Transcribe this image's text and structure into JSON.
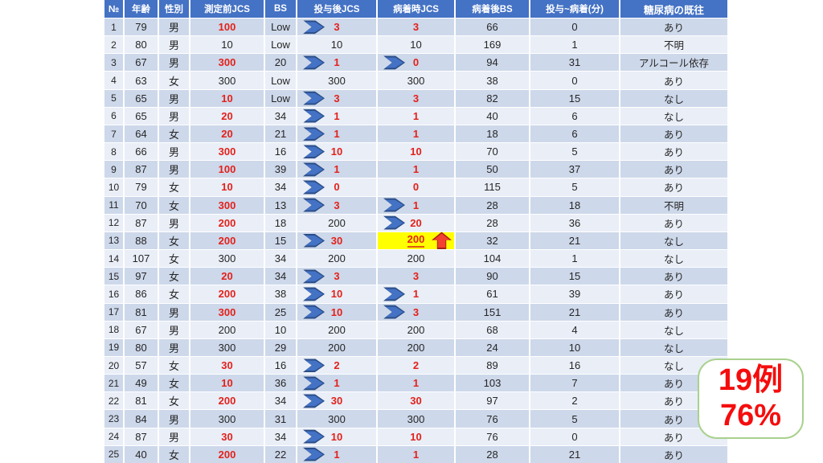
{
  "table": {
    "columns": [
      "№",
      "年齢",
      "性別",
      "測定前JCS",
      "BS",
      "投与後JCS",
      "病着時JCS",
      "病着後BS",
      "投与~病着(分)",
      "糖尿病の既往"
    ],
    "column_keys": [
      "no",
      "age",
      "sex",
      "pre-jcs",
      "bs",
      "post-jcs",
      "arrival-jcs",
      "arrival-bs",
      "minutes",
      "diabetes"
    ],
    "style_legend": {
      "": "black plain",
      "r": "red bold",
      "ar": "blue chevron arrow + red bold",
      "hl": "yellow highlight + red underlined + red up arrow"
    },
    "rows": [
      {
        "no": "1",
        "age": "79",
        "sex": "男",
        "pre": "100",
        "preRed": 1,
        "bs": "Low",
        "post": "3",
        "postStyle": "ar",
        "arr": "3",
        "arrStyle": "r",
        "arrBS": "66",
        "min": "0",
        "dm": "あり"
      },
      {
        "no": "2",
        "age": "80",
        "sex": "男",
        "pre": "10",
        "preRed": 0,
        "bs": "Low",
        "post": "10",
        "postStyle": "",
        "arr": "10",
        "arrStyle": "",
        "arrBS": "169",
        "min": "1",
        "dm": "不明"
      },
      {
        "no": "3",
        "age": "67",
        "sex": "男",
        "pre": "300",
        "preRed": 1,
        "bs": "20",
        "post": "1",
        "postStyle": "ar",
        "arr": "0",
        "arrStyle": "ar",
        "arrBS": "94",
        "min": "31",
        "dm": "アルコール依存"
      },
      {
        "no": "4",
        "age": "63",
        "sex": "女",
        "pre": "300",
        "preRed": 0,
        "bs": "Low",
        "post": "300",
        "postStyle": "",
        "arr": "300",
        "arrStyle": "",
        "arrBS": "38",
        "min": "0",
        "dm": "あり"
      },
      {
        "no": "5",
        "age": "65",
        "sex": "男",
        "pre": "10",
        "preRed": 1,
        "bs": "Low",
        "post": "3",
        "postStyle": "ar",
        "arr": "3",
        "arrStyle": "r",
        "arrBS": "82",
        "min": "15",
        "dm": "なし"
      },
      {
        "no": "6",
        "age": "65",
        "sex": "男",
        "pre": "20",
        "preRed": 1,
        "bs": "34",
        "post": "1",
        "postStyle": "ar",
        "arr": "1",
        "arrStyle": "r",
        "arrBS": "40",
        "min": "6",
        "dm": "なし"
      },
      {
        "no": "7",
        "age": "64",
        "sex": "女",
        "pre": "20",
        "preRed": 1,
        "bs": "21",
        "post": "1",
        "postStyle": "ar",
        "arr": "1",
        "arrStyle": "r",
        "arrBS": "18",
        "min": "6",
        "dm": "あり"
      },
      {
        "no": "8",
        "age": "66",
        "sex": "男",
        "pre": "300",
        "preRed": 1,
        "bs": "16",
        "post": "10",
        "postStyle": "ar",
        "arr": "10",
        "arrStyle": "r",
        "arrBS": "70",
        "min": "5",
        "dm": "あり"
      },
      {
        "no": "9",
        "age": "87",
        "sex": "男",
        "pre": "100",
        "preRed": 1,
        "bs": "39",
        "post": "1",
        "postStyle": "ar",
        "arr": "1",
        "arrStyle": "r",
        "arrBS": "50",
        "min": "37",
        "dm": "あり"
      },
      {
        "no": "10",
        "age": "79",
        "sex": "女",
        "pre": "10",
        "preRed": 1,
        "bs": "34",
        "post": "0",
        "postStyle": "ar",
        "arr": "0",
        "arrStyle": "r",
        "arrBS": "115",
        "min": "5",
        "dm": "あり"
      },
      {
        "no": "11",
        "age": "70",
        "sex": "女",
        "pre": "300",
        "preRed": 1,
        "bs": "13",
        "post": "3",
        "postStyle": "ar",
        "arr": "1",
        "arrStyle": "ar",
        "arrBS": "28",
        "min": "18",
        "dm": "不明"
      },
      {
        "no": "12",
        "age": "87",
        "sex": "男",
        "pre": "200",
        "preRed": 1,
        "bs": "18",
        "post": "200",
        "postStyle": "",
        "arr": "20",
        "arrStyle": "ar",
        "arrBS": "28",
        "min": "36",
        "dm": "あり"
      },
      {
        "no": "13",
        "age": "88",
        "sex": "女",
        "pre": "200",
        "preRed": 1,
        "bs": "15",
        "post": "30",
        "postStyle": "ar",
        "arr": "200",
        "arrStyle": "hl",
        "arrBS": "32",
        "min": "21",
        "dm": "なし"
      },
      {
        "no": "14",
        "age": "107",
        "sex": "女",
        "pre": "300",
        "preRed": 0,
        "bs": "34",
        "post": "200",
        "postStyle": "",
        "arr": "200",
        "arrStyle": "",
        "arrBS": "104",
        "min": "1",
        "dm": "なし"
      },
      {
        "no": "15",
        "age": "97",
        "sex": "女",
        "pre": "20",
        "preRed": 1,
        "bs": "34",
        "post": "3",
        "postStyle": "ar",
        "arr": "3",
        "arrStyle": "r",
        "arrBS": "90",
        "min": "15",
        "dm": "あり"
      },
      {
        "no": "16",
        "age": "86",
        "sex": "女",
        "pre": "200",
        "preRed": 1,
        "bs": "38",
        "post": "10",
        "postStyle": "ar",
        "arr": "1",
        "arrStyle": "ar",
        "arrBS": "61",
        "min": "39",
        "dm": "あり"
      },
      {
        "no": "17",
        "age": "81",
        "sex": "男",
        "pre": "300",
        "preRed": 1,
        "bs": "25",
        "post": "10",
        "postStyle": "ar",
        "arr": "3",
        "arrStyle": "ar",
        "arrBS": "151",
        "min": "21",
        "dm": "あり"
      },
      {
        "no": "18",
        "age": "67",
        "sex": "男",
        "pre": "200",
        "preRed": 0,
        "bs": "10",
        "post": "200",
        "postStyle": "",
        "arr": "200",
        "arrStyle": "",
        "arrBS": "68",
        "min": "4",
        "dm": "なし"
      },
      {
        "no": "19",
        "age": "80",
        "sex": "男",
        "pre": "300",
        "preRed": 0,
        "bs": "29",
        "post": "200",
        "postStyle": "",
        "arr": "200",
        "arrStyle": "",
        "arrBS": "24",
        "min": "10",
        "dm": "なし"
      },
      {
        "no": "20",
        "age": "57",
        "sex": "女",
        "pre": "30",
        "preRed": 1,
        "bs": "16",
        "post": "2",
        "postStyle": "ar",
        "arr": "2",
        "arrStyle": "r",
        "arrBS": "89",
        "min": "16",
        "dm": "なし"
      },
      {
        "no": "21",
        "age": "49",
        "sex": "女",
        "pre": "10",
        "preRed": 1,
        "bs": "36",
        "post": "1",
        "postStyle": "ar",
        "arr": "1",
        "arrStyle": "r",
        "arrBS": "103",
        "min": "7",
        "dm": "あり"
      },
      {
        "no": "22",
        "age": "81",
        "sex": "女",
        "pre": "200",
        "preRed": 1,
        "bs": "34",
        "post": "30",
        "postStyle": "ar",
        "arr": "30",
        "arrStyle": "r",
        "arrBS": "97",
        "min": "2",
        "dm": "あり"
      },
      {
        "no": "23",
        "age": "84",
        "sex": "男",
        "pre": "300",
        "preRed": 0,
        "bs": "31",
        "post": "300",
        "postStyle": "",
        "arr": "300",
        "arrStyle": "",
        "arrBS": "76",
        "min": "5",
        "dm": "あり"
      },
      {
        "no": "24",
        "age": "87",
        "sex": "男",
        "pre": "30",
        "preRed": 1,
        "bs": "34",
        "post": "10",
        "postStyle": "ar",
        "arr": "10",
        "arrStyle": "r",
        "arrBS": "76",
        "min": "0",
        "dm": "あり"
      },
      {
        "no": "25",
        "age": "40",
        "sex": "女",
        "pre": "200",
        "preRed": 1,
        "bs": "22",
        "post": "1",
        "postStyle": "ar",
        "arr": "1",
        "arrStyle": "r",
        "arrBS": "28",
        "min": "21",
        "dm": "あり"
      }
    ]
  },
  "badge": {
    "line1": "19例",
    "line2": "76%"
  },
  "colors": {
    "header_bg": "#4472c4",
    "band_dark": "#cdd8ea",
    "band_light": "#e9eef7",
    "red_text": "#e3211a",
    "chevron_blue": "#4472c4",
    "chevron_outline": "#2a4d87",
    "highlight_yellow": "#ffff00",
    "up_arrow_red": "#f4402e",
    "underline_orange": "#e05a10",
    "badge_border_green": "#a9d18e",
    "badge_text_red": "#f50d0d"
  }
}
